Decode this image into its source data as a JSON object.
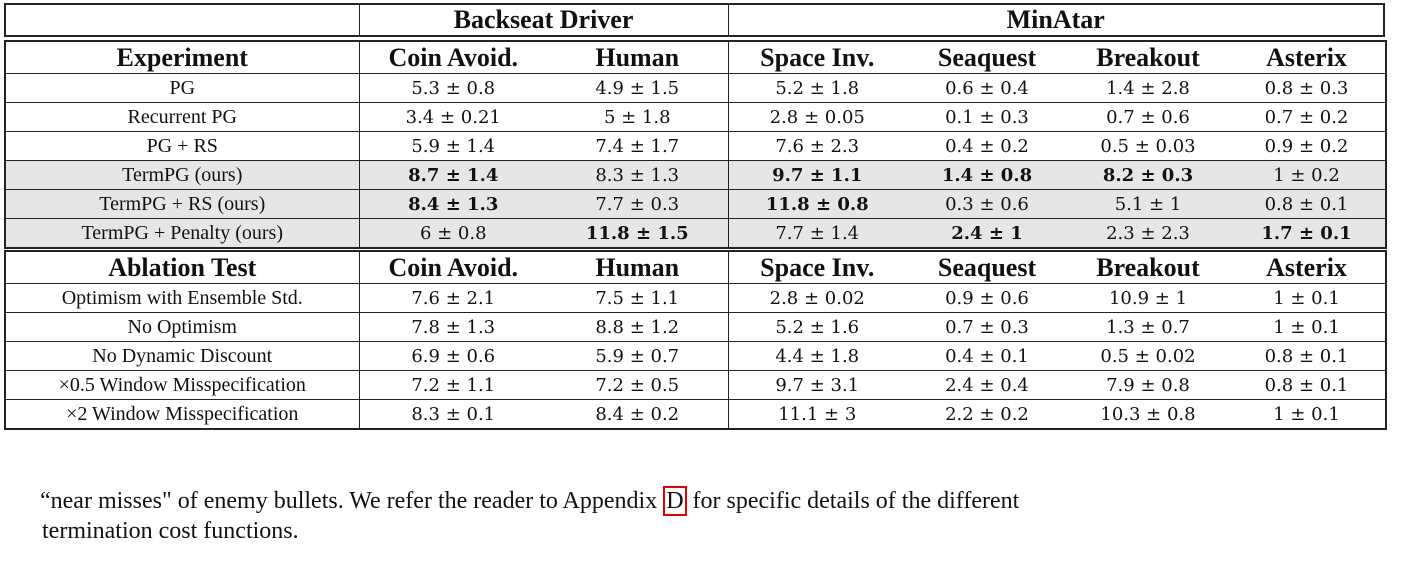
{
  "group_headers": [
    "Backseat Driver",
    "MinAtar"
  ],
  "main_table": {
    "headers": [
      "Experiment",
      "Coin Avoid.",
      "Human",
      "Space Inv.",
      "Seaquest",
      "Breakout",
      "Asterix"
    ],
    "rows": [
      {
        "label": "PG",
        "cells": [
          "5.3 ± 0.8",
          "4.9 ± 1.5",
          "5.2 ± 1.8",
          "0.6 ± 0.4",
          "1.4 ± 2.8",
          "0.8 ± 0.3"
        ],
        "bold": [],
        "shaded": false
      },
      {
        "label": "Recurrent PG",
        "cells": [
          "3.4 ± 0.21",
          "5 ± 1.8",
          "2.8 ± 0.05",
          "0.1 ± 0.3",
          "0.7 ± 0.6",
          "0.7 ± 0.2"
        ],
        "bold": [],
        "shaded": false
      },
      {
        "label": "PG + RS",
        "cells": [
          "5.9 ± 1.4",
          "7.4 ± 1.7",
          "7.6 ± 2.3",
          "0.4 ± 0.2",
          "0.5 ± 0.03",
          "0.9 ± 0.2"
        ],
        "bold": [],
        "shaded": false
      },
      {
        "label": "TermPG (ours)",
        "cells": [
          "8.7 ± 1.4",
          "8.3 ± 1.3",
          "9.7 ± 1.1",
          "1.4 ± 0.8",
          "8.2 ± 0.3",
          "1 ± 0.2"
        ],
        "bold": [
          0,
          2,
          3,
          4
        ],
        "shaded": true
      },
      {
        "label": "TermPG + RS (ours)",
        "cells": [
          "8.4 ± 1.3",
          "7.7 ± 0.3",
          "11.8 ± 0.8",
          "0.3 ± 0.6",
          "5.1 ± 1",
          "0.8 ± 0.1"
        ],
        "bold": [
          0,
          2
        ],
        "shaded": true
      },
      {
        "label": "TermPG + Penalty (ours)",
        "cells": [
          "6 ± 0.8",
          "11.8 ± 1.5",
          "7.7 ± 1.4",
          "2.4 ± 1",
          "2.3 ± 2.3",
          "1.7 ± 0.1"
        ],
        "bold": [
          1,
          3,
          5
        ],
        "shaded": true
      }
    ]
  },
  "ablation_table": {
    "headers": [
      "Ablation Test",
      "Coin Avoid.",
      "Human",
      "Space Inv.",
      "Seaquest",
      "Breakout",
      "Asterix"
    ],
    "rows": [
      {
        "label": "Optimism with Ensemble Std.",
        "cells": [
          "7.6 ± 2.1",
          "7.5 ± 1.1",
          "2.8 ± 0.02",
          "0.9 ± 0.6",
          "10.9 ± 1",
          "1 ± 0.1"
        ],
        "bold": [],
        "shaded": false
      },
      {
        "label": "No Optimism",
        "cells": [
          "7.8 ± 1.3",
          "8.8 ± 1.2",
          "5.2 ± 1.6",
          "0.7 ± 0.3",
          "1.3 ± 0.7",
          "1 ± 0.1"
        ],
        "bold": [],
        "shaded": false
      },
      {
        "label": "No Dynamic Discount",
        "cells": [
          "6.9 ± 0.6",
          "5.9 ± 0.7",
          "4.4 ± 1.8",
          "0.4 ± 0.1",
          "0.5 ± 0.02",
          "0.8 ± 0.1"
        ],
        "bold": [],
        "shaded": false
      },
      {
        "label": "×0.5 Window Misspecification",
        "cells": [
          "7.2 ± 1.1",
          "7.2 ± 0.5",
          "9.7 ± 3.1",
          "2.4 ± 0.4",
          "7.9 ± 0.8",
          "0.8 ± 0.1"
        ],
        "bold": [],
        "shaded": false
      },
      {
        "label": "×2 Window Misspecification",
        "cells": [
          "8.3 ± 0.1",
          "8.4 ± 0.2",
          "11.1 ± 3",
          "2.2 ± 0.2",
          "10.3 ± 0.8",
          "1 ± 0.1"
        ],
        "bold": [],
        "shaded": false
      }
    ]
  },
  "body_text": {
    "line1_before": "“near misses\" of enemy bullets. We refer the reader to Appendix ",
    "ref": "D",
    "line1_after": " for specific details of the different",
    "line2": "termination cost functions.",
    "ref_box_color": "#e00000"
  }
}
